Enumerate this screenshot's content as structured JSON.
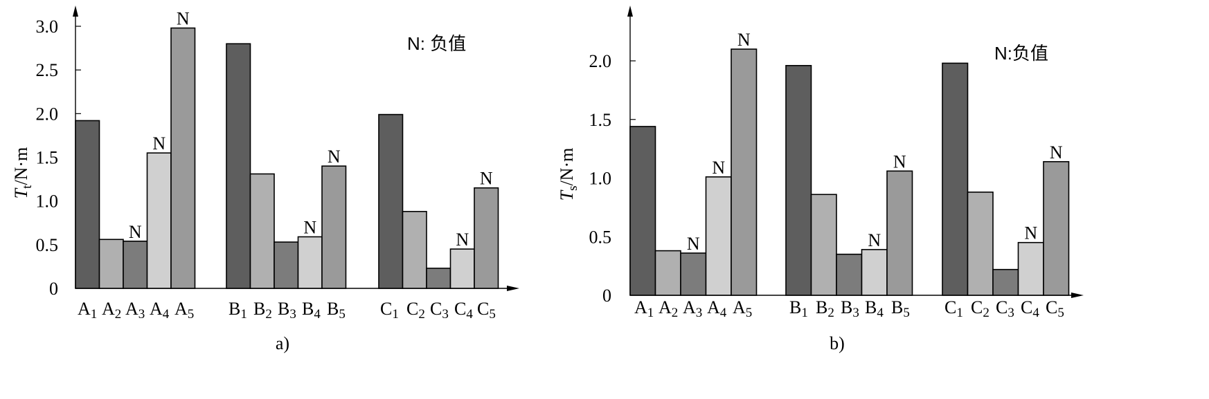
{
  "chart_data": [
    {
      "type": "bar",
      "panel_label": "a)",
      "ylabel_symbol": "T",
      "ylabel_sub": "t",
      "ylabel_unit": "/N·m",
      "note": "N: 负值",
      "negative_marker": "N",
      "ylim": [
        0,
        3.0
      ],
      "yticks": [
        "0",
        "0.5",
        "1.0",
        "1.5",
        "2.0",
        "2.5",
        "3.0"
      ],
      "ytick_values": [
        0,
        0.5,
        1.0,
        1.5,
        2.0,
        2.5,
        3.0
      ],
      "grid": false,
      "groups": [
        {
          "letter": "A",
          "bars": [
            {
              "sub": "1",
              "value": 1.92,
              "negative": false
            },
            {
              "sub": "2",
              "value": 0.56,
              "negative": false
            },
            {
              "sub": "3",
              "value": 0.54,
              "negative": true
            },
            {
              "sub": "4",
              "value": 1.55,
              "negative": true
            },
            {
              "sub": "5",
              "value": 2.98,
              "negative": true
            }
          ]
        },
        {
          "letter": "B",
          "bars": [
            {
              "sub": "1",
              "value": 2.8,
              "negative": false
            },
            {
              "sub": "2",
              "value": 1.31,
              "negative": false
            },
            {
              "sub": "3",
              "value": 0.53,
              "negative": false
            },
            {
              "sub": "4",
              "value": 0.59,
              "negative": true
            },
            {
              "sub": "5",
              "value": 1.4,
              "negative": true
            }
          ]
        },
        {
          "letter": "C",
          "bars": [
            {
              "sub": "1",
              "value": 1.99,
              "negative": false
            },
            {
              "sub": "2",
              "value": 0.88,
              "negative": false
            },
            {
              "sub": "3",
              "value": 0.23,
              "negative": false
            },
            {
              "sub": "4",
              "value": 0.45,
              "negative": true
            },
            {
              "sub": "5",
              "value": 1.15,
              "negative": true
            }
          ]
        }
      ]
    },
    {
      "type": "bar",
      "panel_label": "b)",
      "ylabel_symbol": "T",
      "ylabel_sub": "s",
      "ylabel_unit": "/N·m",
      "note": "N:负值",
      "negative_marker": "N",
      "ylim": [
        0,
        2.2
      ],
      "yticks": [
        "0",
        "0.5",
        "1.0",
        "1.5",
        "2.0"
      ],
      "ytick_values": [
        0,
        0.5,
        1.0,
        1.5,
        2.0
      ],
      "grid": false,
      "groups": [
        {
          "letter": "A",
          "bars": [
            {
              "sub": "1",
              "value": 1.44,
              "negative": false
            },
            {
              "sub": "2",
              "value": 0.38,
              "negative": false
            },
            {
              "sub": "3",
              "value": 0.36,
              "negative": true
            },
            {
              "sub": "4",
              "value": 1.01,
              "negative": true
            },
            {
              "sub": "5",
              "value": 2.1,
              "negative": true
            }
          ]
        },
        {
          "letter": "B",
          "bars": [
            {
              "sub": "1",
              "value": 1.96,
              "negative": false
            },
            {
              "sub": "2",
              "value": 0.86,
              "negative": false
            },
            {
              "sub": "3",
              "value": 0.35,
              "negative": false
            },
            {
              "sub": "4",
              "value": 0.39,
              "negative": true
            },
            {
              "sub": "5",
              "value": 1.06,
              "negative": true
            }
          ]
        },
        {
          "letter": "C",
          "bars": [
            {
              "sub": "1",
              "value": 1.98,
              "negative": false
            },
            {
              "sub": "2",
              "value": 0.88,
              "negative": false
            },
            {
              "sub": "3",
              "value": 0.22,
              "negative": false
            },
            {
              "sub": "4",
              "value": 0.45,
              "negative": true
            },
            {
              "sub": "5",
              "value": 1.14,
              "negative": true
            }
          ]
        }
      ]
    }
  ],
  "style": {
    "bar_colors": [
      "#5e5e5e",
      "#b0b0b0",
      "#7c7c7c",
      "#d0d0d0",
      "#9a9a9a"
    ],
    "stroke": "#000000"
  }
}
